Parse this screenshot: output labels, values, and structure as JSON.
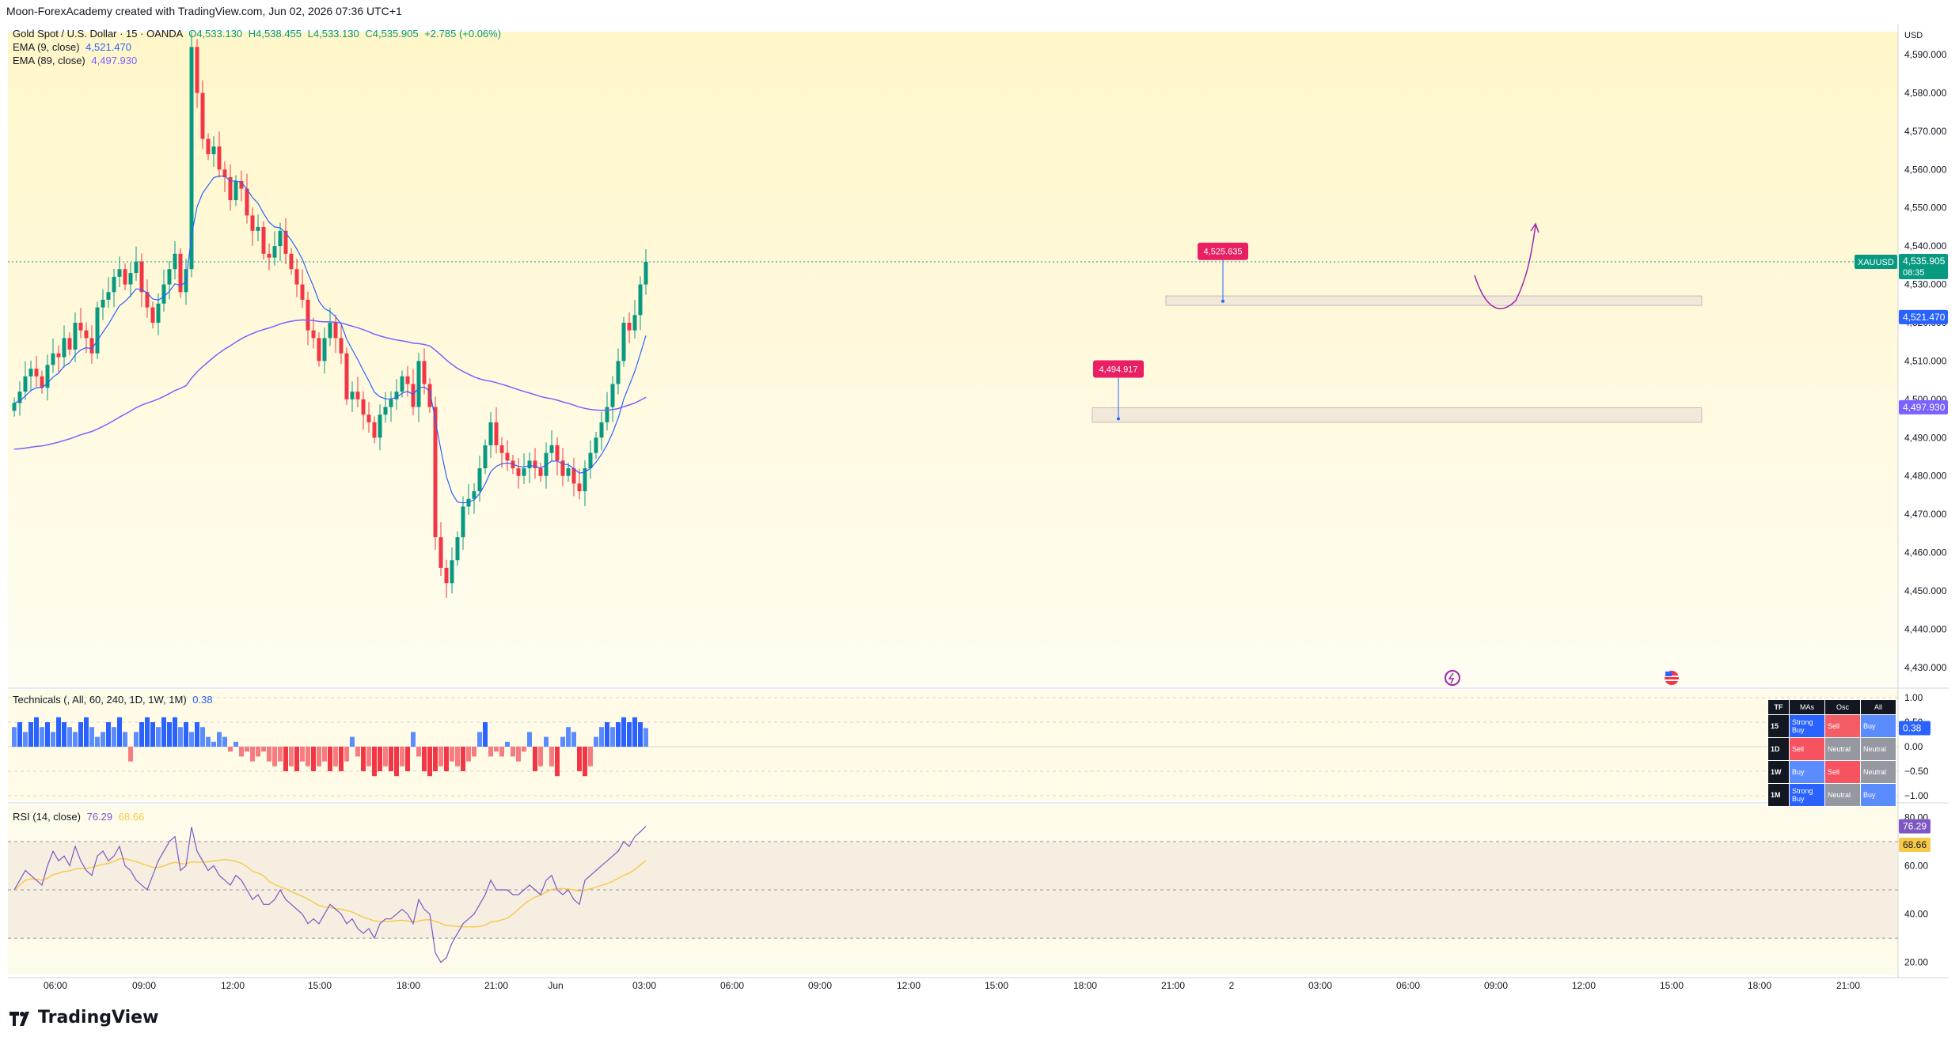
{
  "credit": "Moon-ForexAcademy created with TradingView.com, Jun 02, 2026 07:36 UTC+1",
  "legend": {
    "symbol": "Gold Spot / U.S. Dollar · 15 · OANDA",
    "o": "O4,533.130",
    "h": "H4,538.455",
    "l": "L4,533.130",
    "c": "C4,535.905",
    "chg": "+2.785 (+0.06%)",
    "ema9_label": "EMA (9, close)",
    "ema9_val": "4,521.470",
    "ema89_label": "EMA (89, close)",
    "ema89_val": "4,497.930"
  },
  "currency": "USD",
  "symbol_tag": "XAUUSD",
  "price_tag": "4,535.905",
  "countdown": "08:35",
  "ema9_tag": "4,521.470",
  "ema89_tag": "4,497.930",
  "annotations": [
    "4,525.635",
    "4,494.917"
  ],
  "technicals": {
    "label": "Technicals (, All, 60, 240, 1D, 1W, 1M)",
    "value": "0.38",
    "axis": [
      "1.00",
      "0.50",
      "0.00",
      "−0.50",
      "−1.00"
    ],
    "tag": "0.38",
    "table": {
      "headers": [
        "TF",
        "MAs",
        "Osc",
        "All"
      ],
      "rows": [
        {
          "tf": "15",
          "mas": "Strong Buy",
          "osc": "Sell",
          "all": "Buy"
        },
        {
          "tf": "1D",
          "mas": "Sell",
          "osc": "Neutral",
          "all": "Neutral"
        },
        {
          "tf": "1W",
          "mas": "Buy",
          "osc": "Sell",
          "all": "Neutral"
        },
        {
          "tf": "1M",
          "mas": "Strong Buy",
          "osc": "Neutral",
          "all": "Buy"
        }
      ]
    }
  },
  "rsi": {
    "label": "RSI (14, close)",
    "value": "76.29",
    "ma_value": "68.66",
    "axis": [
      "80.00",
      "60.00",
      "40.00",
      "20.00"
    ],
    "tag": "76.29",
    "ma_tag": "68.66"
  },
  "chart_data": {
    "type": "candlestick",
    "y_axis": [
      "4,590.000",
      "4,580.000",
      "4,570.000",
      "4,560.000",
      "4,550.000",
      "4,540.000",
      "4,530.000",
      "4,520.000",
      "4,510.000",
      "4,500.000",
      "4,490.000",
      "4,480.000",
      "4,470.000",
      "4,460.000",
      "4,450.000",
      "4,440.000",
      "4,430.000"
    ],
    "ylim": [
      4425,
      4596
    ],
    "x_axis": [
      "06:00",
      "09:00",
      "12:00",
      "15:00",
      "18:00",
      "21:00",
      "Jun",
      "03:00",
      "06:00",
      "09:00",
      "12:00",
      "15:00",
      "18:00",
      "21:00",
      "2",
      "03:00",
      "06:00",
      "09:00",
      "12:00",
      "15:00",
      "18:00",
      "21:00"
    ],
    "close": [
      4499,
      4502,
      4506,
      4508,
      4506,
      4503,
      4509,
      4512,
      4511,
      4516,
      4513,
      4520,
      4518,
      4516,
      4512,
      4524,
      4526,
      4528,
      4532,
      4534,
      4530,
      4533,
      4536,
      4528,
      4524,
      4520,
      4525,
      4530,
      4534,
      4538,
      4528,
      4534,
      4592,
      4580,
      4568,
      4564,
      4566,
      4560,
      4558,
      4552,
      4557,
      4555,
      4548,
      4544,
      4545,
      4538,
      4537,
      4540,
      4544,
      4538,
      4534,
      4530,
      4526,
      4518,
      4516,
      4510,
      4516,
      4520,
      4516,
      4512,
      4500,
      4502,
      4500,
      4496,
      4494,
      4490,
      4496,
      4498,
      4500,
      4502,
      4506,
      4504,
      4498,
      4510,
      4504,
      4498,
      4464,
      4456,
      4452,
      4458,
      4464,
      4472,
      4474,
      4476,
      4482,
      4488,
      4494,
      4488,
      4486,
      4484,
      4482,
      4480,
      4482,
      4484,
      4482,
      4480,
      4486,
      4488,
      4484,
      4480,
      4482,
      4478,
      4476,
      4482,
      4486,
      4490,
      4494,
      4498,
      4504,
      4510,
      4520,
      4518,
      4522,
      4530,
      4535.905
    ],
    "ema9_tag": 4521.47,
    "ema89_tag": 4497.93,
    "support_zones": [
      [
        4524.5,
        4527.0
      ],
      [
        4494.0,
        4497.8
      ]
    ],
    "annotation_values": [
      4525.635,
      4494.917
    ],
    "technicals_histogram": [
      0.4,
      0.5,
      0.3,
      0.5,
      0.6,
      0.4,
      0.5,
      0.3,
      0.6,
      0.5,
      0.4,
      0.3,
      0.5,
      0.6,
      0.4,
      0.2,
      0.3,
      0.5,
      0.4,
      0.6,
      0.3,
      -0.3,
      0.3,
      0.5,
      0.6,
      0.5,
      0.4,
      0.6,
      0.5,
      0.6,
      0.4,
      0.5,
      0.3,
      0.5,
      0.4,
      0.2,
      0.1,
      0.3,
      0.2,
      -0.1,
      0.1,
      -0.2,
      -0.1,
      -0.3,
      -0.2,
      -0.1,
      -0.3,
      -0.4,
      -0.3,
      -0.5,
      -0.4,
      -0.5,
      -0.3,
      -0.4,
      -0.5,
      -0.4,
      -0.3,
      -0.5,
      -0.4,
      -0.5,
      -0.3,
      0.2,
      -0.2,
      -0.5,
      -0.4,
      -0.6,
      -0.5,
      -0.4,
      -0.5,
      -0.6,
      -0.4,
      -0.5,
      0.3,
      -0.2,
      -0.5,
      -0.6,
      -0.5,
      -0.4,
      -0.5,
      -0.3,
      -0.4,
      -0.5,
      -0.3,
      -0.2,
      0.3,
      0.5,
      -0.2,
      -0.1,
      -0.2,
      0.1,
      -0.2,
      -0.3,
      -0.1,
      0.3,
      -0.5,
      -0.4,
      0.2,
      -0.4,
      -0.6,
      0.2,
      0.4,
      0.3,
      -0.5,
      -0.6,
      -0.4,
      0.2,
      0.4,
      0.5,
      0.4,
      0.5,
      0.6,
      0.5,
      0.6,
      0.5,
      0.38
    ],
    "rsi": [
      50,
      54,
      58,
      56,
      54,
      52,
      60,
      66,
      62,
      64,
      60,
      68,
      62,
      58,
      56,
      64,
      66,
      62,
      64,
      68,
      60,
      58,
      54,
      52,
      50,
      56,
      62,
      66,
      70,
      72,
      58,
      60,
      76,
      66,
      62,
      58,
      60,
      56,
      54,
      52,
      56,
      54,
      50,
      46,
      48,
      44,
      44,
      46,
      50,
      46,
      44,
      42,
      40,
      36,
      38,
      36,
      40,
      44,
      42,
      40,
      36,
      38,
      34,
      32,
      34,
      30,
      36,
      38,
      38,
      40,
      42,
      40,
      36,
      46,
      42,
      40,
      24,
      20,
      22,
      28,
      32,
      36,
      38,
      40,
      44,
      48,
      54,
      50,
      50,
      50,
      48,
      48,
      50,
      52,
      50,
      48,
      54,
      56,
      50,
      48,
      50,
      46,
      44,
      54,
      56,
      58,
      60,
      62,
      64,
      66,
      70,
      68,
      72,
      74,
      76.29
    ]
  }
}
